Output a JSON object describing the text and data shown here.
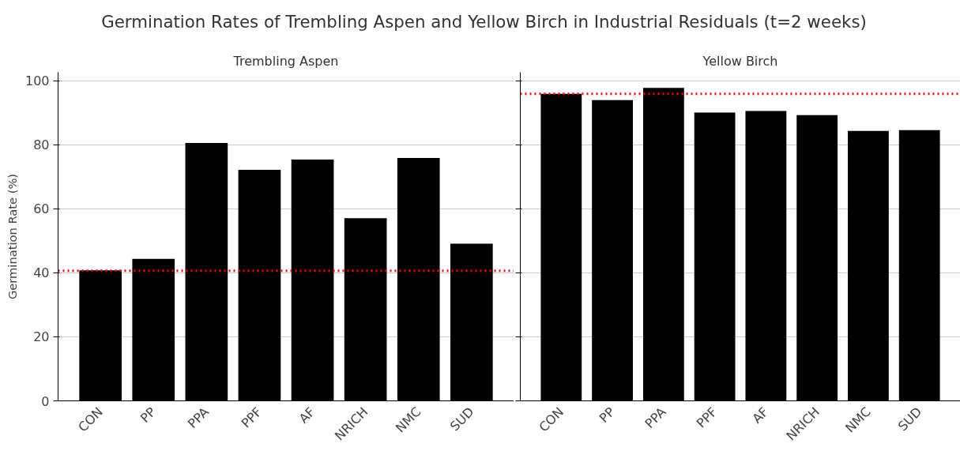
{
  "chart_data": [
    {
      "type": "bar",
      "title": "Germination Rates of Trembling Aspen and Yellow Birch in Industrial Residuals (t=2 weeks)",
      "subtitle": "Trembling Aspen",
      "ylabel": "Germination Rate (%)",
      "categories": [
        "CON",
        "PP",
        "PPA",
        "PPF",
        "AF",
        "NRICH",
        "NMC",
        "SUD"
      ],
      "series": [
        {
          "color": "#000000",
          "values": [
            40.8,
            44.4,
            80.6,
            72.2,
            75.4,
            57.1,
            75.9,
            49.1
          ]
        }
      ],
      "ylim": [
        0,
        102.7
      ],
      "yticks": [
        0,
        20,
        40,
        60,
        80,
        100
      ],
      "grid": "y",
      "ref_lines": [
        {
          "axis": "y",
          "value": 40.7,
          "color": "#ff0000",
          "line_style": "dotted"
        }
      ]
    },
    {
      "type": "bar",
      "subtitle": "Yellow Birch",
      "categories": [
        "CON",
        "PP",
        "PPA",
        "PPF",
        "AF",
        "NRICH",
        "NMC",
        "SUD"
      ],
      "series": [
        {
          "color": "#000000",
          "values": [
            96.0,
            94.0,
            97.8,
            90.1,
            90.6,
            89.3,
            84.4,
            84.6
          ]
        }
      ],
      "ylim": [
        0,
        102.7
      ],
      "yticks": [
        0,
        20,
        40,
        60,
        80,
        100
      ],
      "grid": "y",
      "tick_labels": "x",
      "ref_lines": [
        {
          "axis": "y",
          "value": 96.0,
          "color": "#ff0000",
          "line_style": "dotted"
        }
      ]
    }
  ]
}
